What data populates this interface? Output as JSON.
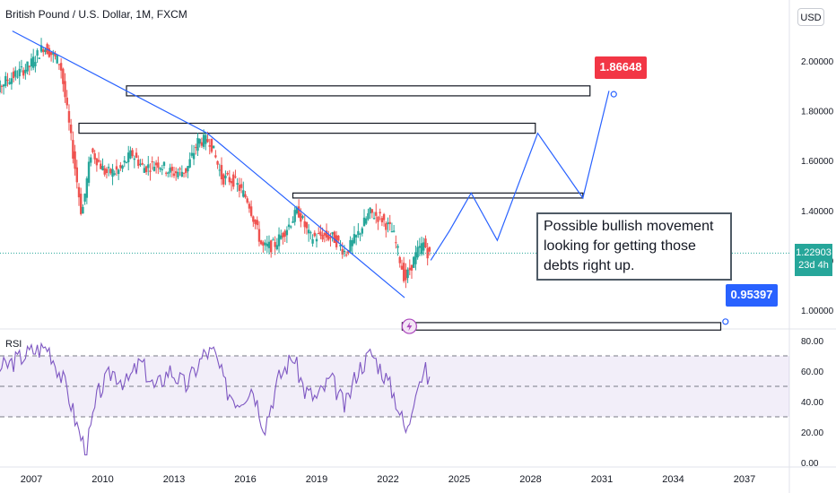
{
  "header": {
    "symbol_title": "British Pound / U.S. Dollar, 1M, FXCM",
    "currency": "USD"
  },
  "price_tag": {
    "price": "1.22903",
    "countdown": "23d 4h",
    "color": "#26a69a"
  },
  "annotations": {
    "note": "Possible bullish movement looking for getting those debts right up.",
    "target_high": "1.86648",
    "target_low": "0.95397"
  },
  "rsi": {
    "label": "RSI"
  },
  "colors": {
    "up_candle": "#26a69a",
    "down_candle": "#ef5350",
    "trendline": "#2962ff",
    "rsi_line": "#7e57c2",
    "target_high_color": "#f23645",
    "target_low_color": "#2962ff"
  },
  "chart_data": [
    {
      "type": "line",
      "title": "British Pound / U.S. Dollar, 1M, FXCM",
      "series": [
        {
          "name": "GBP/USD",
          "x": [
            2005.0,
            2006.0,
            2007.0,
            2007.6,
            2008.3,
            2008.7,
            2009.2,
            2009.6,
            2010.2,
            2010.8,
            2011.3,
            2011.8,
            2012.4,
            2013.0,
            2013.6,
            2014.1,
            2014.6,
            2015.1,
            2015.6,
            2016.2,
            2016.8,
            2017.3,
            2017.9,
            2018.3,
            2018.8,
            2019.3,
            2019.8,
            2020.3,
            2020.8,
            2021.3,
            2021.8,
            2022.3,
            2022.8,
            2023.3,
            2023.6,
            2023.8
          ],
          "values": [
            1.83,
            1.92,
            1.98,
            2.06,
            1.99,
            1.72,
            1.38,
            1.64,
            1.55,
            1.56,
            1.63,
            1.57,
            1.59,
            1.55,
            1.56,
            1.68,
            1.68,
            1.53,
            1.52,
            1.44,
            1.25,
            1.26,
            1.34,
            1.4,
            1.29,
            1.3,
            1.29,
            1.23,
            1.3,
            1.39,
            1.37,
            1.31,
            1.12,
            1.23,
            1.27,
            1.22
          ]
        },
        {
          "name": "Projection",
          "x": [
            2023.8,
            2024.6,
            2025.5,
            2026.6,
            2028.3,
            2030.2,
            2031.3
          ],
          "values": [
            1.2,
            1.32,
            1.47,
            1.28,
            1.71,
            1.45,
            1.88
          ]
        }
      ],
      "trendline": {
        "x": [
          2006.2,
          2014.4,
          2022.7
        ],
        "values": [
          2.12,
          1.71,
          1.05
        ]
      },
      "zones": [
        {
          "x": [
            2011.0,
            2030.5
          ],
          "values": [
            1.86,
            1.9
          ]
        },
        {
          "x": [
            2009.0,
            2028.2
          ],
          "values": [
            1.71,
            1.75
          ]
        },
        {
          "x": [
            2018.0,
            2030.2
          ],
          "values": [
            1.45,
            1.47
          ]
        },
        {
          "x": [
            2022.6,
            2036.0
          ],
          "values": [
            0.92,
            0.95
          ]
        }
      ],
      "targets": [
        {
          "x": 2031.5,
          "value": 1.86648
        },
        {
          "x": 2036.2,
          "value": 0.95397
        }
      ],
      "yticks": [
        "2.00000",
        "1.80000",
        "1.60000",
        "1.40000",
        "1.20000",
        "1.00000"
      ],
      "ylim": [
        0.96,
        2.14
      ],
      "xticks": [
        "2007",
        "2010",
        "2013",
        "2016",
        "2019",
        "2022",
        "2025",
        "2028",
        "2031",
        "2034",
        "2037"
      ],
      "xlim": [
        2005.8,
        2038.9
      ],
      "current_price": 1.22903,
      "grid": false
    },
    {
      "type": "line",
      "title": "RSI",
      "series": [
        {
          "name": "RSI",
          "x": [
            2005.0,
            2006.0,
            2007.0,
            2007.7,
            2008.5,
            2008.9,
            2009.3,
            2009.8,
            2010.4,
            2011.0,
            2011.6,
            2012.2,
            2012.8,
            2013.5,
            2014.3,
            2014.7,
            2015.2,
            2015.7,
            2016.3,
            2016.8,
            2017.4,
            2018.0,
            2018.5,
            2019.0,
            2019.6,
            2020.2,
            2020.7,
            2021.3,
            2021.8,
            2022.3,
            2022.8,
            2023.2,
            2023.6,
            2023.8
          ],
          "values": [
            56,
            64,
            73,
            76,
            48,
            25,
            7,
            45,
            60,
            52,
            66,
            48,
            61,
            50,
            72,
            72,
            48,
            40,
            50,
            23,
            55,
            70,
            47,
            42,
            55,
            36,
            60,
            72,
            59,
            43,
            18,
            53,
            60,
            48
          ]
        }
      ],
      "ylim": [
        0,
        80
      ],
      "yticks": [
        "80.00",
        "60.00",
        "40.00",
        "20.00",
        "0.00"
      ],
      "bands": [
        30,
        50,
        70
      ]
    }
  ]
}
